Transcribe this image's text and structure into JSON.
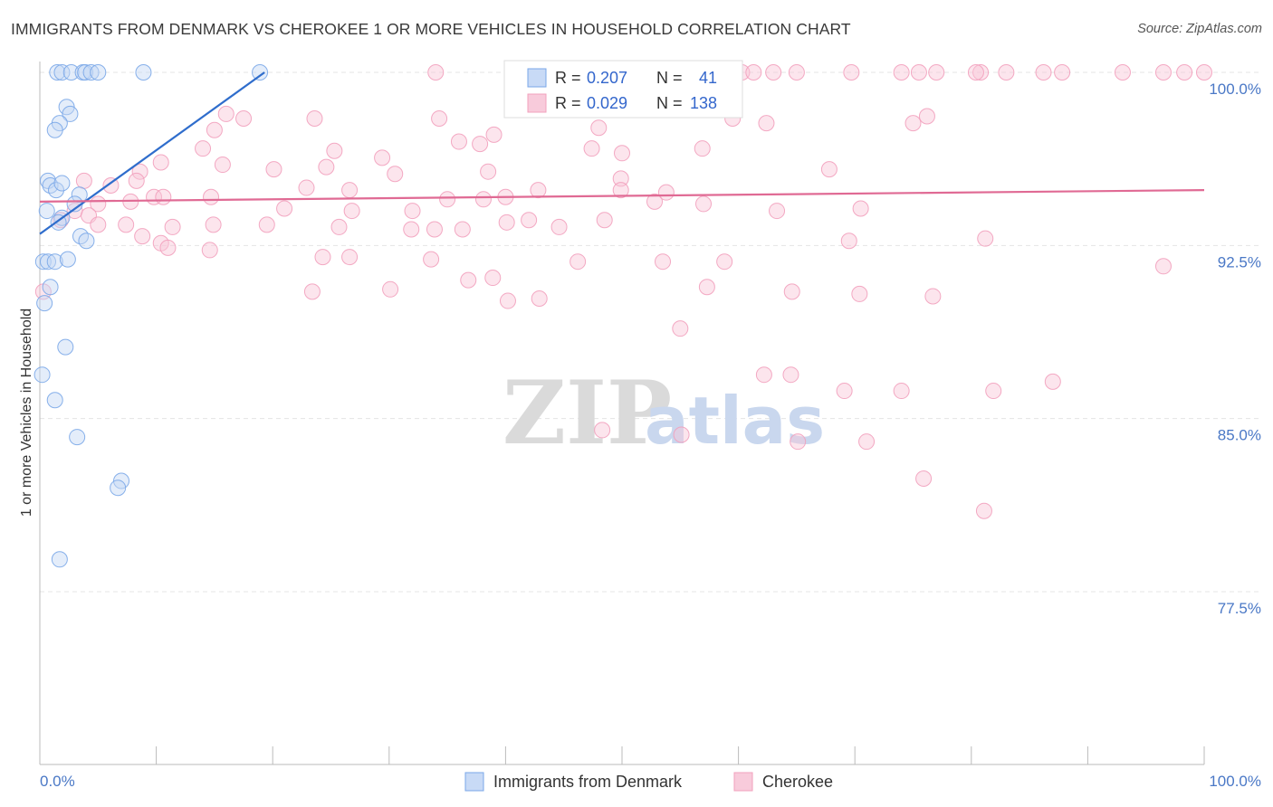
{
  "chart_data": {
    "type": "scatter",
    "title": "IMMIGRANTS FROM DENMARK VS CHEROKEE 1 OR MORE VEHICLES IN HOUSEHOLD CORRELATION CHART",
    "source": "Source: ZipAtlas.com",
    "xlabel": "",
    "ylabel": "1 or more Vehicles in Household",
    "xlim": [
      0,
      100
    ],
    "ylim": [
      70.5,
      101.5
    ],
    "x_tick_labels": [
      "0.0%",
      "100.0%"
    ],
    "y_ticks": [
      77.5,
      85.0,
      92.5,
      100.0
    ],
    "y_tick_labels": [
      "77.5%",
      "85.0%",
      "92.5%",
      "100.0%"
    ],
    "watermark": {
      "zip": "ZIP",
      "atlas": "atlas"
    },
    "legend": {
      "r_label": "R =",
      "n_label": "N =",
      "entries": [
        {
          "name": "Immigrants from Denmark",
          "r": "0.207",
          "n": "41",
          "color": "#7aa7e8"
        },
        {
          "name": "Cherokee",
          "r": "0.029",
          "n": "138",
          "color": "#f2a0bd"
        }
      ]
    },
    "series": [
      {
        "name": "Immigrants from Denmark",
        "color": "#7aa7e8",
        "line_color": "#2f6dcc",
        "trend": {
          "x": [
            0.0,
            19.3
          ],
          "y": [
            93.0,
            100.0
          ]
        },
        "points": [
          [
            1.5,
            100
          ],
          [
            1.9,
            100
          ],
          [
            2.7,
            100
          ],
          [
            3.7,
            100
          ],
          [
            3.9,
            100
          ],
          [
            4.4,
            100
          ],
          [
            5.0,
            100
          ],
          [
            8.9,
            100
          ],
          [
            18.9,
            100
          ],
          [
            2.3,
            98.5
          ],
          [
            2.6,
            98.2
          ],
          [
            1.7,
            97.8
          ],
          [
            1.3,
            97.5
          ],
          [
            0.7,
            95.3
          ],
          [
            0.9,
            95.1
          ],
          [
            1.4,
            94.9
          ],
          [
            3.4,
            94.7
          ],
          [
            1.9,
            95.2
          ],
          [
            3.0,
            94.3
          ],
          [
            0.6,
            94.0
          ],
          [
            1.9,
            93.7
          ],
          [
            1.6,
            93.5
          ],
          [
            3.5,
            92.9
          ],
          [
            4.0,
            92.7
          ],
          [
            0.3,
            91.8
          ],
          [
            0.7,
            91.8
          ],
          [
            1.3,
            91.8
          ],
          [
            2.4,
            91.9
          ],
          [
            0.9,
            90.7
          ],
          [
            0.4,
            90.0
          ],
          [
            2.2,
            88.1
          ],
          [
            0.2,
            86.9
          ],
          [
            1.3,
            85.8
          ],
          [
            3.2,
            84.2
          ],
          [
            7.0,
            82.3
          ],
          [
            6.7,
            82.0
          ],
          [
            1.7,
            78.9
          ]
        ]
      },
      {
        "name": "Cherokee",
        "color": "#f2a0bd",
        "line_color": "#e06a94",
        "trend": {
          "x": [
            0.0,
            100.0
          ],
          "y": [
            94.4,
            94.9
          ]
        },
        "points": [
          [
            34.0,
            100
          ],
          [
            46.5,
            100
          ],
          [
            51.0,
            100
          ],
          [
            60.3,
            100
          ],
          [
            61.3,
            100
          ],
          [
            63.0,
            100
          ],
          [
            65.0,
            100
          ],
          [
            69.7,
            100
          ],
          [
            74.0,
            100
          ],
          [
            75.5,
            100
          ],
          [
            77.0,
            100
          ],
          [
            80.8,
            100
          ],
          [
            83.0,
            100
          ],
          [
            86.2,
            100
          ],
          [
            93.0,
            100
          ],
          [
            98.3,
            100
          ],
          [
            100.0,
            100
          ],
          [
            96.5,
            100
          ],
          [
            87.8,
            100
          ],
          [
            80.4,
            100
          ],
          [
            16.0,
            98.2
          ],
          [
            15.0,
            97.5
          ],
          [
            17.5,
            98.0
          ],
          [
            23.6,
            98.0
          ],
          [
            34.3,
            98.0
          ],
          [
            48.0,
            97.6
          ],
          [
            59.5,
            98.0
          ],
          [
            62.4,
            97.8
          ],
          [
            75.0,
            97.8
          ],
          [
            76.2,
            98.1
          ],
          [
            36.0,
            97.0
          ],
          [
            39.0,
            97.3
          ],
          [
            37.8,
            96.9
          ],
          [
            14.0,
            96.7
          ],
          [
            25.3,
            96.6
          ],
          [
            29.4,
            96.3
          ],
          [
            50.0,
            96.5
          ],
          [
            47.4,
            96.7
          ],
          [
            56.9,
            96.7
          ],
          [
            10.4,
            96.1
          ],
          [
            8.6,
            95.7
          ],
          [
            15.7,
            96.0
          ],
          [
            24.6,
            95.9
          ],
          [
            20.1,
            95.8
          ],
          [
            30.5,
            95.6
          ],
          [
            38.5,
            95.7
          ],
          [
            49.9,
            95.4
          ],
          [
            67.8,
            95.8
          ],
          [
            3.8,
            95.3
          ],
          [
            6.1,
            95.1
          ],
          [
            8.3,
            95.3
          ],
          [
            22.9,
            95.0
          ],
          [
            26.6,
            94.9
          ],
          [
            35.0,
            94.5
          ],
          [
            38.1,
            94.5
          ],
          [
            40.0,
            94.6
          ],
          [
            42.8,
            94.9
          ],
          [
            49.9,
            94.9
          ],
          [
            52.8,
            94.4
          ],
          [
            53.8,
            94.8
          ],
          [
            5.0,
            94.3
          ],
          [
            7.8,
            94.4
          ],
          [
            9.8,
            94.6
          ],
          [
            10.6,
            94.6
          ],
          [
            14.7,
            94.6
          ],
          [
            21.0,
            94.1
          ],
          [
            26.8,
            94.0
          ],
          [
            32.0,
            94.0
          ],
          [
            57.0,
            94.3
          ],
          [
            63.3,
            94.0
          ],
          [
            70.5,
            94.1
          ],
          [
            3.0,
            94.0
          ],
          [
            4.2,
            93.8
          ],
          [
            1.8,
            93.6
          ],
          [
            5.0,
            93.4
          ],
          [
            7.4,
            93.4
          ],
          [
            11.4,
            93.3
          ],
          [
            14.9,
            93.4
          ],
          [
            19.5,
            93.4
          ],
          [
            25.7,
            93.3
          ],
          [
            31.9,
            93.2
          ],
          [
            33.9,
            93.2
          ],
          [
            36.3,
            93.2
          ],
          [
            40.1,
            93.5
          ],
          [
            42.0,
            93.6
          ],
          [
            44.6,
            93.3
          ],
          [
            48.5,
            93.6
          ],
          [
            8.8,
            92.9
          ],
          [
            10.4,
            92.6
          ],
          [
            11.0,
            92.4
          ],
          [
            14.6,
            92.3
          ],
          [
            24.3,
            92.0
          ],
          [
            26.6,
            92.0
          ],
          [
            33.6,
            91.9
          ],
          [
            46.2,
            91.8
          ],
          [
            53.5,
            91.8
          ],
          [
            58.8,
            91.8
          ],
          [
            69.5,
            92.7
          ],
          [
            81.2,
            92.8
          ],
          [
            96.5,
            91.6
          ],
          [
            0.3,
            90.5
          ],
          [
            23.4,
            90.5
          ],
          [
            30.1,
            90.6
          ],
          [
            36.8,
            91.0
          ],
          [
            38.9,
            91.1
          ],
          [
            40.2,
            90.1
          ],
          [
            42.9,
            90.2
          ],
          [
            57.3,
            90.7
          ],
          [
            64.6,
            90.5
          ],
          [
            70.4,
            90.4
          ],
          [
            76.7,
            90.3
          ],
          [
            55.0,
            88.9
          ],
          [
            62.2,
            86.9
          ],
          [
            64.5,
            86.9
          ],
          [
            69.1,
            86.2
          ],
          [
            74.0,
            86.2
          ],
          [
            81.9,
            86.2
          ],
          [
            87.0,
            86.6
          ],
          [
            48.3,
            84.5
          ],
          [
            55.1,
            84.3
          ],
          [
            65.1,
            84.0
          ],
          [
            71.0,
            84.0
          ],
          [
            75.9,
            82.4
          ],
          [
            81.1,
            81.0
          ]
        ]
      }
    ]
  }
}
